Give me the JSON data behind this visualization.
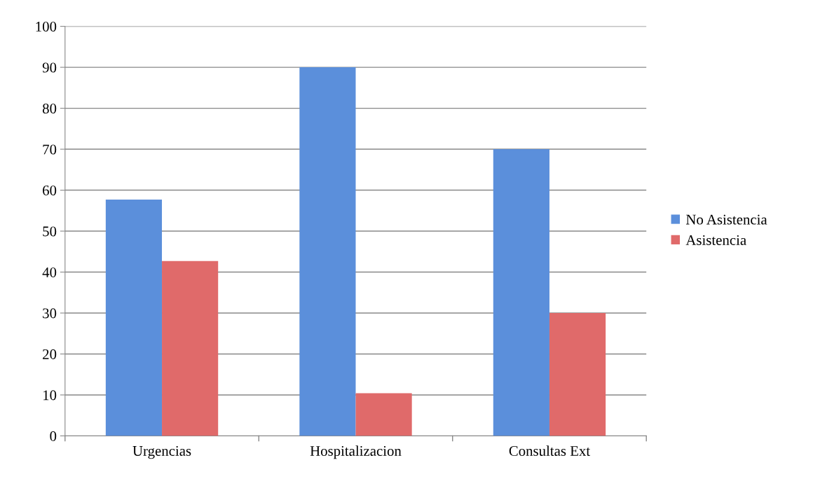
{
  "chart_data": {
    "type": "bar",
    "categories": [
      "Urgencias",
      "Hospitalizacion",
      "Consultas Ext"
    ],
    "series": [
      {
        "name": "No Asistencia",
        "color": "#5b8fdb",
        "values": [
          57.7,
          90,
          70
        ]
      },
      {
        "name": "Asistencia",
        "color": "#e06a6a",
        "values": [
          42.7,
          10.4,
          30
        ]
      }
    ],
    "ylim": [
      0,
      100
    ],
    "yticks": [
      0,
      10,
      20,
      30,
      40,
      50,
      60,
      70,
      80,
      90,
      100
    ],
    "grid": "y",
    "legend": "right"
  }
}
